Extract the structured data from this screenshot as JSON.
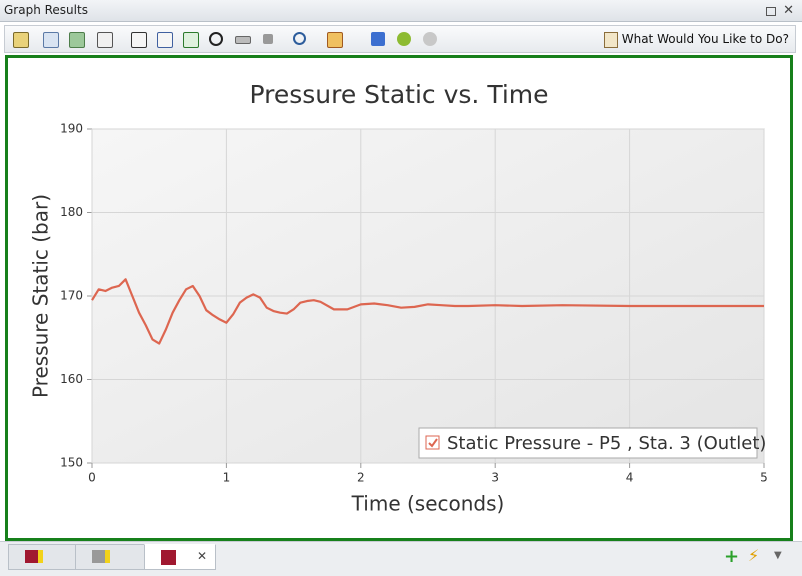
{
  "window": {
    "title": "Graph Results"
  },
  "toolbar": {
    "help": "What Would You Like to Do?"
  },
  "chart_data": {
    "type": "line",
    "title": "Pressure Static vs. Time",
    "x_label": "Time (seconds)",
    "y_label": "Pressure Static (bar)",
    "x": [
      0,
      0.05,
      0.1,
      0.15,
      0.2,
      0.25,
      0.3,
      0.35,
      0.4,
      0.45,
      0.5,
      0.55,
      0.6,
      0.65,
      0.7,
      0.75,
      0.8,
      0.85,
      0.9,
      0.95,
      1.0,
      1.05,
      1.1,
      1.15,
      1.2,
      1.25,
      1.3,
      1.35,
      1.4,
      1.45,
      1.5,
      1.55,
      1.6,
      1.65,
      1.7,
      1.8,
      1.9,
      2.0,
      2.1,
      2.2,
      2.3,
      2.4,
      2.5,
      2.6,
      2.7,
      2.8,
      3.0,
      3.2,
      3.5,
      4.0,
      5.0
    ],
    "series": [
      {
        "name": "Static Pressure - P5 , Sta. 3 (Outlet)",
        "color": "#dd6650",
        "values": [
          169.5,
          170.8,
          170.6,
          171.0,
          171.2,
          172.0,
          170.0,
          168.0,
          166.5,
          164.8,
          164.3,
          166.0,
          168.0,
          169.5,
          170.8,
          171.2,
          170.0,
          168.3,
          167.7,
          167.2,
          166.8,
          167.8,
          169.2,
          169.8,
          170.2,
          169.8,
          168.6,
          168.2,
          168.0,
          167.9,
          168.4,
          169.2,
          169.4,
          169.5,
          169.3,
          168.4,
          168.4,
          169.0,
          169.1,
          168.9,
          168.6,
          168.7,
          169.0,
          168.9,
          168.8,
          168.8,
          168.9,
          168.8,
          168.9,
          168.8,
          168.8
        ]
      }
    ],
    "xlim": [
      0,
      5
    ],
    "ylim": [
      150,
      190
    ],
    "xticks": [
      0,
      1,
      2,
      3,
      4,
      5
    ],
    "yticks": [
      150,
      160,
      170,
      180,
      190
    ],
    "grid": true,
    "legend": "lower right"
  }
}
